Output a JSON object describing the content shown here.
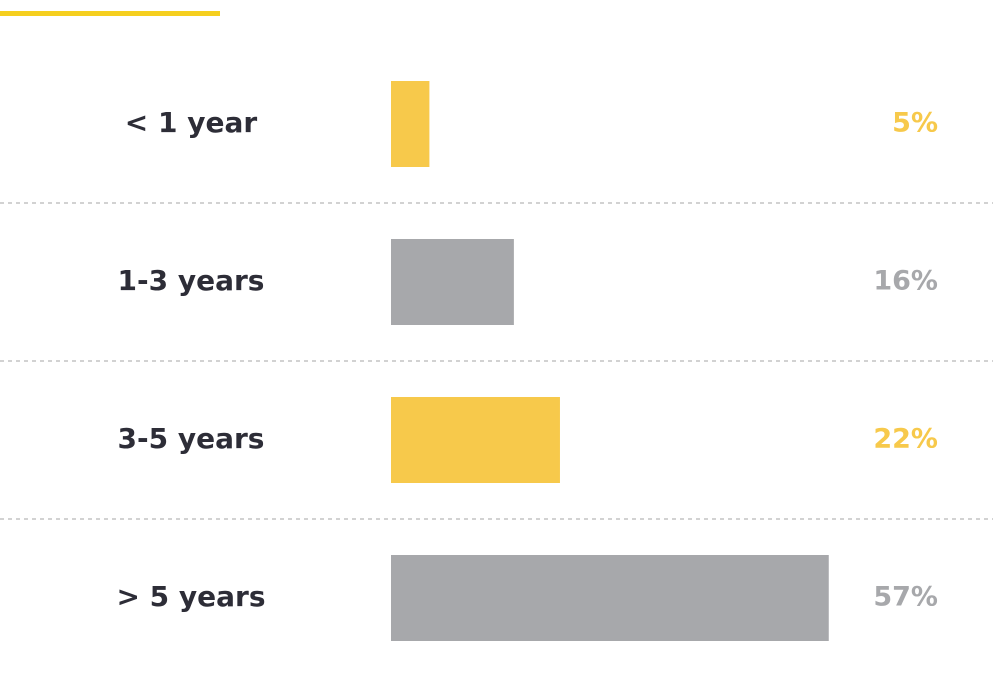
{
  "chart_data": {
    "type": "bar",
    "orientation": "horizontal",
    "categories": [
      "< 1 year",
      "1-3 years",
      "3-5 years",
      "> 5 years"
    ],
    "values": [
      5,
      16,
      22,
      57
    ],
    "value_labels": [
      "5%",
      "16%",
      "22%",
      "57%"
    ],
    "colors": [
      "#f7c94b",
      "#a7a8ab",
      "#f7c94b",
      "#a7a8ab"
    ],
    "xlim": [
      0,
      100
    ]
  }
}
